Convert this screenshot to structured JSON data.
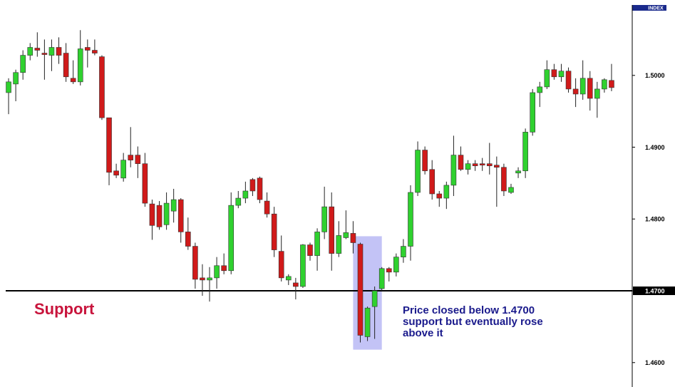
{
  "chart_data": {
    "type": "candlestick",
    "axis_title": "INDEX",
    "up_color": "#2fd12f",
    "down_color": "#d01a1a",
    "ylim": [
      1.4566,
      1.5105
    ],
    "yticks": [
      {
        "value": 1.46,
        "label": "1.4600"
      },
      {
        "value": 1.47,
        "label": "1.4700"
      },
      {
        "value": 1.48,
        "label": "1.4800"
      },
      {
        "value": 1.49,
        "label": "1.4900"
      },
      {
        "value": 1.5,
        "label": "1.5000"
      }
    ],
    "support_level": 1.47,
    "support_label": "Support",
    "annotation": [
      "Price closed below 1.4700",
      "support but eventually rose",
      "above it"
    ],
    "highlight_ylim": [
      1.4618,
      1.4776
    ],
    "open": [
      1.4976,
      1.4988,
      1.5004,
      1.5028,
      1.5038,
      1.5031,
      1.5028,
      1.5039,
      1.5031,
      1.4996,
      1.4991,
      1.5039,
      1.5035,
      1.5026,
      1.4941,
      1.4867,
      1.4857,
      1.4889,
      1.4889,
      1.4877,
      1.4821,
      1.4819,
      1.4792,
      1.4811,
      1.4827,
      1.4782,
      1.4762,
      1.4718,
      1.4715,
      1.4718,
      1.4735,
      1.4728,
      1.4819,
      1.4829,
      1.4855,
      1.4857,
      1.4825,
      1.4807,
      1.4755,
      1.4715,
      1.4711,
      1.4706,
      1.4764,
      1.4749,
      1.4782,
      1.4817,
      1.4752,
      1.4774,
      1.478,
      1.4765,
      1.4636,
      1.4678,
      1.4703,
      1.4731,
      1.4726,
      1.4747,
      1.4762,
      1.4837,
      1.4896,
      1.4869,
      1.4835,
      1.4829,
      1.4847,
      1.4889,
      1.4869,
      1.4877,
      1.4877,
      1.4877,
      1.4875,
      1.4872,
      1.4837,
      1.4864,
      1.4867,
      1.4921,
      1.4976,
      1.4984,
      1.5008,
      1.4998,
      1.5006,
      1.4981,
      1.4974,
      1.4996,
      1.4968,
      1.4981,
      1.4993
    ],
    "high": [
      1.4996,
      1.5008,
      1.5035,
      1.5045,
      1.506,
      1.505,
      1.505,
      1.5053,
      1.5045,
      1.5021,
      1.5063,
      1.505,
      1.505,
      1.5028,
      1.4941,
      1.4877,
      1.4892,
      1.4928,
      1.4901,
      1.4892,
      1.4827,
      1.4825,
      1.4837,
      1.4842,
      1.4829,
      1.4802,
      1.4767,
      1.4737,
      1.4733,
      1.4747,
      1.4752,
      1.4837,
      1.4839,
      1.4852,
      1.4857,
      1.4859,
      1.4837,
      1.4817,
      1.4777,
      1.4723,
      1.4718,
      1.4765,
      1.4767,
      1.4787,
      1.4845,
      1.4837,
      1.4797,
      1.4812,
      1.4797,
      1.4767,
      1.4678,
      1.4706,
      1.4733,
      1.4733,
      1.4752,
      1.4772,
      1.4847,
      1.4908,
      1.4901,
      1.4882,
      1.4839,
      1.4852,
      1.4916,
      1.4901,
      1.4882,
      1.4882,
      1.4885,
      1.4906,
      1.4887,
      1.4877,
      1.4849,
      1.4872,
      1.4926,
      1.4981,
      1.4991,
      1.5021,
      1.5016,
      1.5016,
      1.5011,
      1.4996,
      1.5021,
      1.5006,
      1.4991,
      1.4996,
      1.5016
    ],
    "low": [
      1.4946,
      1.4964,
      1.4994,
      1.5021,
      1.5026,
      1.4994,
      1.5006,
      1.5016,
      1.4991,
      1.4988,
      1.4986,
      1.5011,
      1.5028,
      1.4938,
      1.4847,
      1.4857,
      1.4852,
      1.4872,
      1.4857,
      1.4817,
      1.4771,
      1.4785,
      1.4785,
      1.4795,
      1.4767,
      1.4757,
      1.4703,
      1.4693,
      1.4685,
      1.4703,
      1.4723,
      1.4723,
      1.4815,
      1.4822,
      1.4832,
      1.4822,
      1.4802,
      1.4747,
      1.4713,
      1.4708,
      1.4688,
      1.4704,
      1.4742,
      1.4728,
      1.4772,
      1.4728,
      1.4747,
      1.4772,
      1.4752,
      1.4628,
      1.463,
      1.4633,
      1.47,
      1.4713,
      1.472,
      1.4739,
      1.4742,
      1.4832,
      1.4862,
      1.4827,
      1.4817,
      1.4814,
      1.4832,
      1.4867,
      1.4862,
      1.4867,
      1.4867,
      1.4862,
      1.4817,
      1.4832,
      1.4835,
      1.4857,
      1.4857,
      1.4916,
      1.4956,
      1.4981,
      1.4994,
      1.4991,
      1.4976,
      1.4956,
      1.4966,
      1.4951,
      1.4941,
      1.4976,
      1.4978
    ],
    "close": [
      1.4991,
      1.5004,
      1.5028,
      1.5039,
      1.5035,
      1.5029,
      1.5039,
      1.5028,
      1.4998,
      1.4991,
      1.5037,
      1.5035,
      1.5031,
      1.4941,
      1.4865,
      1.4861,
      1.4882,
      1.4882,
      1.4877,
      1.4822,
      1.4791,
      1.4789,
      1.4822,
      1.4827,
      1.4782,
      1.4762,
      1.4716,
      1.4715,
      1.4718,
      1.4735,
      1.4728,
      1.4819,
      1.4829,
      1.4839,
      1.4839,
      1.4827,
      1.4807,
      1.4757,
      1.4718,
      1.472,
      1.4706,
      1.4764,
      1.4749,
      1.4782,
      1.4817,
      1.4752,
      1.4777,
      1.4781,
      1.4767,
      1.4638,
      1.4676,
      1.47,
      1.4731,
      1.4726,
      1.4747,
      1.4762,
      1.4837,
      1.4896,
      1.4867,
      1.4835,
      1.4829,
      1.4847,
      1.4889,
      1.4869,
      1.4877,
      1.4874,
      1.4875,
      1.4874,
      1.4872,
      1.4839,
      1.4844,
      1.4867,
      1.4921,
      1.4976,
      1.4984,
      1.5008,
      1.4998,
      1.5006,
      1.4981,
      1.4974,
      1.4996,
      1.4968,
      1.4981,
      1.4994,
      1.4983
    ]
  }
}
